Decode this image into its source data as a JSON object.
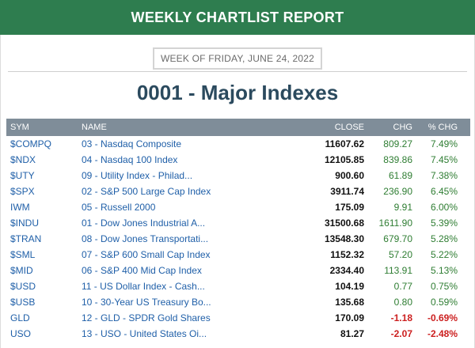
{
  "header": {
    "title": "WEEKLY CHARTLIST REPORT"
  },
  "week_label": "WEEK OF FRIDAY, JUNE 24, 2022",
  "list_title": "0001 - Major Indexes",
  "colors": {
    "header_bg": "#2e7d4f",
    "table_header_bg": "#7f8d99",
    "positive": "#2e7d32",
    "negative": "#cc1f1f",
    "link": "#1f5fa8"
  },
  "table": {
    "columns": {
      "sym": "SYM",
      "name": "NAME",
      "close": "CLOSE",
      "chg": "CHG",
      "pct": "% CHG"
    },
    "rows": [
      {
        "sym": "$COMPQ",
        "name": "03 - Nasdaq Composite",
        "close": "11607.62",
        "chg": "809.27",
        "pct": "7.49%",
        "dir": "pos"
      },
      {
        "sym": "$NDX",
        "name": "04 - Nasdaq 100 Index",
        "close": "12105.85",
        "chg": "839.86",
        "pct": "7.45%",
        "dir": "pos"
      },
      {
        "sym": "$UTY",
        "name": "09 - Utility Index - Philad...",
        "close": "900.60",
        "chg": "61.89",
        "pct": "7.38%",
        "dir": "pos"
      },
      {
        "sym": "$SPX",
        "name": "02 - S&P 500 Large Cap Index",
        "close": "3911.74",
        "chg": "236.90",
        "pct": "6.45%",
        "dir": "pos"
      },
      {
        "sym": "IWM",
        "name": "05 - Russell 2000",
        "close": "175.09",
        "chg": "9.91",
        "pct": "6.00%",
        "dir": "pos"
      },
      {
        "sym": "$INDU",
        "name": "01 - Dow Jones Industrial A...",
        "close": "31500.68",
        "chg": "1611.90",
        "pct": "5.39%",
        "dir": "pos"
      },
      {
        "sym": "$TRAN",
        "name": "08 - Dow Jones Transportati...",
        "close": "13548.30",
        "chg": "679.70",
        "pct": "5.28%",
        "dir": "pos"
      },
      {
        "sym": "$SML",
        "name": "07 - S&P 600 Small Cap Index",
        "close": "1152.32",
        "chg": "57.20",
        "pct": "5.22%",
        "dir": "pos"
      },
      {
        "sym": "$MID",
        "name": "06 - S&P 400 Mid Cap Index",
        "close": "2334.40",
        "chg": "113.91",
        "pct": "5.13%",
        "dir": "pos"
      },
      {
        "sym": "$USD",
        "name": "11 - US Dollar Index - Cash...",
        "close": "104.19",
        "chg": "0.77",
        "pct": "0.75%",
        "dir": "pos"
      },
      {
        "sym": "$USB",
        "name": "10 - 30-Year US Treasury Bo...",
        "close": "135.68",
        "chg": "0.80",
        "pct": "0.59%",
        "dir": "pos"
      },
      {
        "sym": "GLD",
        "name": "12 - GLD - SPDR Gold Shares",
        "close": "170.09",
        "chg": "-1.18",
        "pct": "-0.69%",
        "dir": "neg"
      },
      {
        "sym": "USO",
        "name": "13 - USO - United States Oi...",
        "close": "81.27",
        "chg": "-2.07",
        "pct": "-2.48%",
        "dir": "neg"
      }
    ]
  }
}
